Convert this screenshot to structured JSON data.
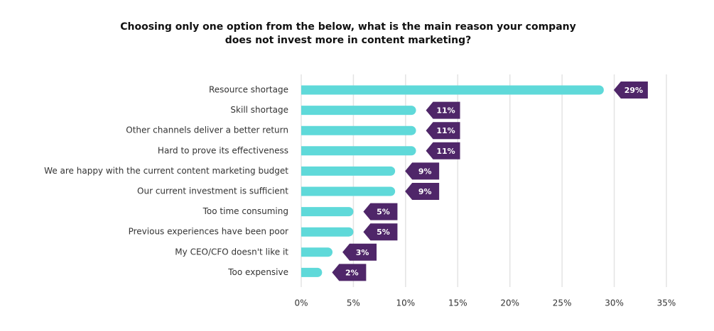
{
  "chart_data": {
    "type": "bar",
    "orientation": "horizontal",
    "title": [
      "Choosing only one option from the below, what is the main reason your company",
      "does not invest more in content marketing?"
    ],
    "categories": [
      "Resource shortage",
      "Skill shortage",
      "Other channels deliver a better return",
      "Hard to prove its effectiveness",
      "We are happy with the current content marketing budget",
      "Our current investment is sufficient",
      "Too time consuming",
      "Previous experiences have been poor",
      "My CEO/CFO doesn't like it",
      "Too expensive"
    ],
    "values": [
      29,
      11,
      11,
      11,
      9,
      9,
      5,
      5,
      3,
      2
    ],
    "value_labels": [
      "29%",
      "11%",
      "11%",
      "11%",
      "9%",
      "9%",
      "5%",
      "5%",
      "3%",
      "2%"
    ],
    "color": "#5fd9d9",
    "label_color": "#4f2669",
    "xlim": [
      0,
      35
    ],
    "xticks": [
      {
        "value": 0,
        "label": "0%"
      },
      {
        "value": 5,
        "label": "5%"
      },
      {
        "value": 10,
        "label": "10%"
      },
      {
        "value": 15,
        "label": "15%"
      },
      {
        "value": 20,
        "label": "20%"
      },
      {
        "value": 25,
        "label": "25%"
      },
      {
        "value": 30,
        "label": "30%"
      },
      {
        "value": 35,
        "label": "35%"
      }
    ],
    "grid": true
  }
}
